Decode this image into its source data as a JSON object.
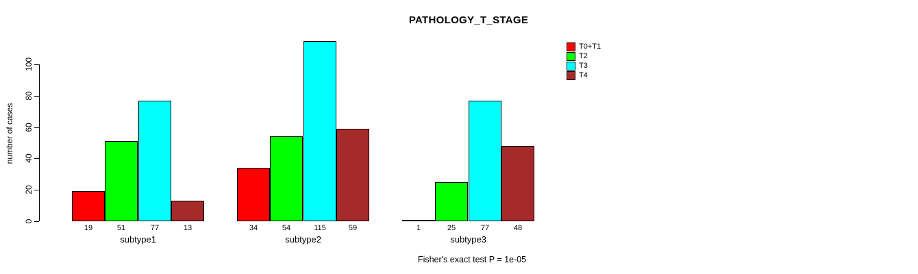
{
  "chart_data": {
    "type": "bar",
    "title": "PATHOLOGY_T_STAGE",
    "ylabel": "number of cases",
    "xlabel": "",
    "categories": [
      "subtype1",
      "subtype2",
      "subtype3"
    ],
    "series": [
      {
        "name": "T0+T1",
        "color": "#ff0000",
        "values": [
          19,
          34,
          1
        ]
      },
      {
        "name": "T2",
        "color": "#00ff00",
        "values": [
          51,
          54,
          25
        ]
      },
      {
        "name": "T3",
        "color": "#00ffff",
        "values": [
          77,
          115,
          77
        ]
      },
      {
        "name": "T4",
        "color": "#a52a2a",
        "values": [
          13,
          59,
          48
        ]
      }
    ],
    "yticks": [
      0,
      20,
      40,
      60,
      80,
      100
    ],
    "ylim": [
      0,
      100
    ],
    "grid": false,
    "legend_position": "top-right",
    "bar_border_color": "#000000",
    "footnote": "Fisher's exact test P = 1e-05"
  }
}
